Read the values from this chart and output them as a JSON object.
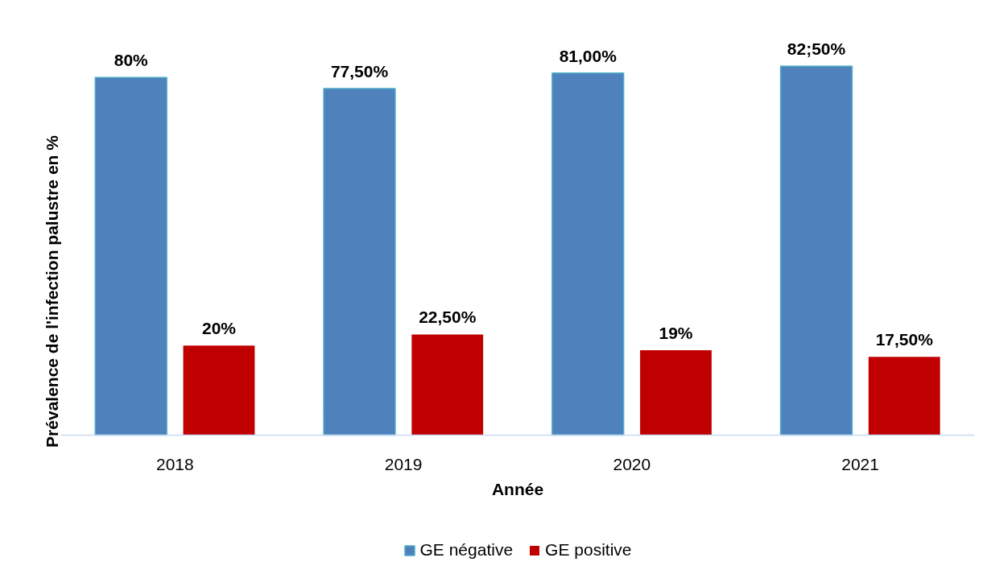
{
  "chart_data": {
    "type": "bar",
    "xlabel": "Année",
    "ylabel": "Prévalence de l'infection palustre en %",
    "categories": [
      "2018",
      "2019",
      "2020",
      "2021"
    ],
    "series": [
      {
        "name": "GE négative",
        "color": "#4f81bd",
        "values": [
          80,
          77.5,
          81,
          82.5
        ],
        "value_labels": [
          "80%",
          "77,50%",
          "81,00%",
          "82;50%"
        ]
      },
      {
        "name": "GE positive",
        "color": "#c00000",
        "values": [
          20,
          22.5,
          19,
          17.5
        ],
        "value_labels": [
          "20%",
          "22,50%",
          "19%",
          "17,50%"
        ]
      }
    ],
    "legend": "bottom",
    "tick_labels": "x"
  }
}
